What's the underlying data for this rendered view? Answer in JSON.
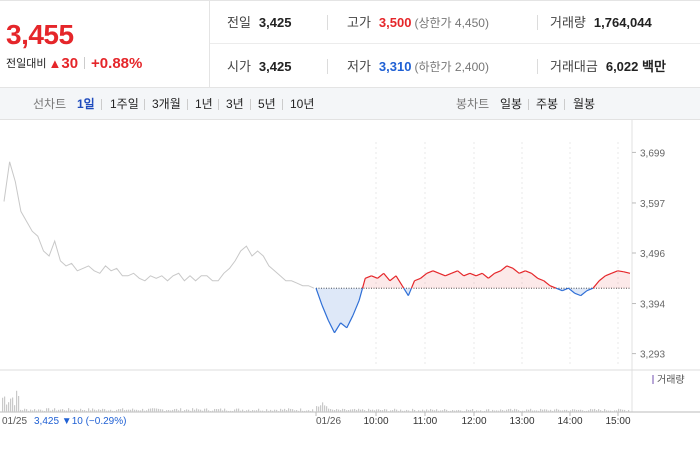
{
  "price": {
    "current": "3,455",
    "change_label": "전일대비",
    "change_symbol": "▲",
    "change_value": "30",
    "change_percent": "+0.88%",
    "color_up": "#e5262a",
    "color_down": "#1f60d4"
  },
  "stats": {
    "prev_close": {
      "label": "전일",
      "value": "3,425"
    },
    "high": {
      "label": "고가",
      "value": "3,500",
      "limit_text": "(상한가 4,450)"
    },
    "volume": {
      "label": "거래량",
      "value": "1,764,044"
    },
    "open": {
      "label": "시가",
      "value": "3,425"
    },
    "low": {
      "label": "저가",
      "value": "3,310",
      "limit_text": "(하한가 2,400)"
    },
    "amount": {
      "label": "거래대금",
      "value": "6,022",
      "unit": "백만"
    }
  },
  "tabs": {
    "line_label": "선차트",
    "line_tabs": [
      "1일",
      "1주일",
      "3개월",
      "1년",
      "3년",
      "5년",
      "10년"
    ],
    "active_line_tab": "1일",
    "candle_label": "봉차트",
    "candle_tabs": [
      "일봉",
      "주봉",
      "월봉"
    ]
  },
  "chart_data": {
    "type": "line",
    "title": "",
    "xlabel": "",
    "ylabel": "",
    "y_ticks": [
      "3,699",
      "3,597",
      "3,496",
      "3,394",
      "3,293"
    ],
    "y_tick_values": [
      3699,
      3597,
      3496,
      3394,
      3293
    ],
    "ylim": [
      3270,
      3720
    ],
    "baseline": 3425,
    "prev_day": {
      "date": "01/25",
      "color": "#c8c8c8",
      "values": [
        3600,
        3680,
        3640,
        3580,
        3560,
        3540,
        3530,
        3500,
        3490,
        3520,
        3480,
        3470,
        3475,
        3460,
        3465,
        3470,
        3460,
        3455,
        3470,
        3460,
        3465,
        3450,
        3450,
        3455,
        3445,
        3440,
        3450,
        3445,
        3450,
        3440,
        3450,
        3455,
        3440,
        3450,
        3440,
        3450,
        3450,
        3440,
        3440,
        3455,
        3465,
        3480,
        3500,
        3510,
        3490,
        3500,
        3490,
        3470,
        3460,
        3450,
        3440,
        3440,
        3435,
        3430,
        3430,
        3425
      ]
    },
    "today": {
      "date": "01/26",
      "x_ticks": [
        "10:00",
        "11:00",
        "12:00",
        "13:00",
        "14:00",
        "15:00"
      ],
      "values": [
        3425,
        3390,
        3360,
        3335,
        3355,
        3345,
        3370,
        3400,
        3445,
        3450,
        3445,
        3455,
        3440,
        3450,
        3430,
        3410,
        3440,
        3445,
        3455,
        3460,
        3455,
        3450,
        3455,
        3460,
        3450,
        3455,
        3450,
        3455,
        3445,
        3455,
        3460,
        3470,
        3465,
        3455,
        3460,
        3455,
        3445,
        3440,
        3430,
        3425,
        3420,
        3425,
        3415,
        3410,
        3420,
        3425,
        3440,
        3450,
        3455,
        3460,
        3458,
        3455
      ],
      "color_up": "#e5262a",
      "color_down": "#2f6fd6"
    },
    "volume_legend": "거래량",
    "summary": {
      "date": "01/25",
      "price": "3,425",
      "symbol": "▼",
      "change": "10",
      "percent": "(−0.29%)"
    }
  }
}
